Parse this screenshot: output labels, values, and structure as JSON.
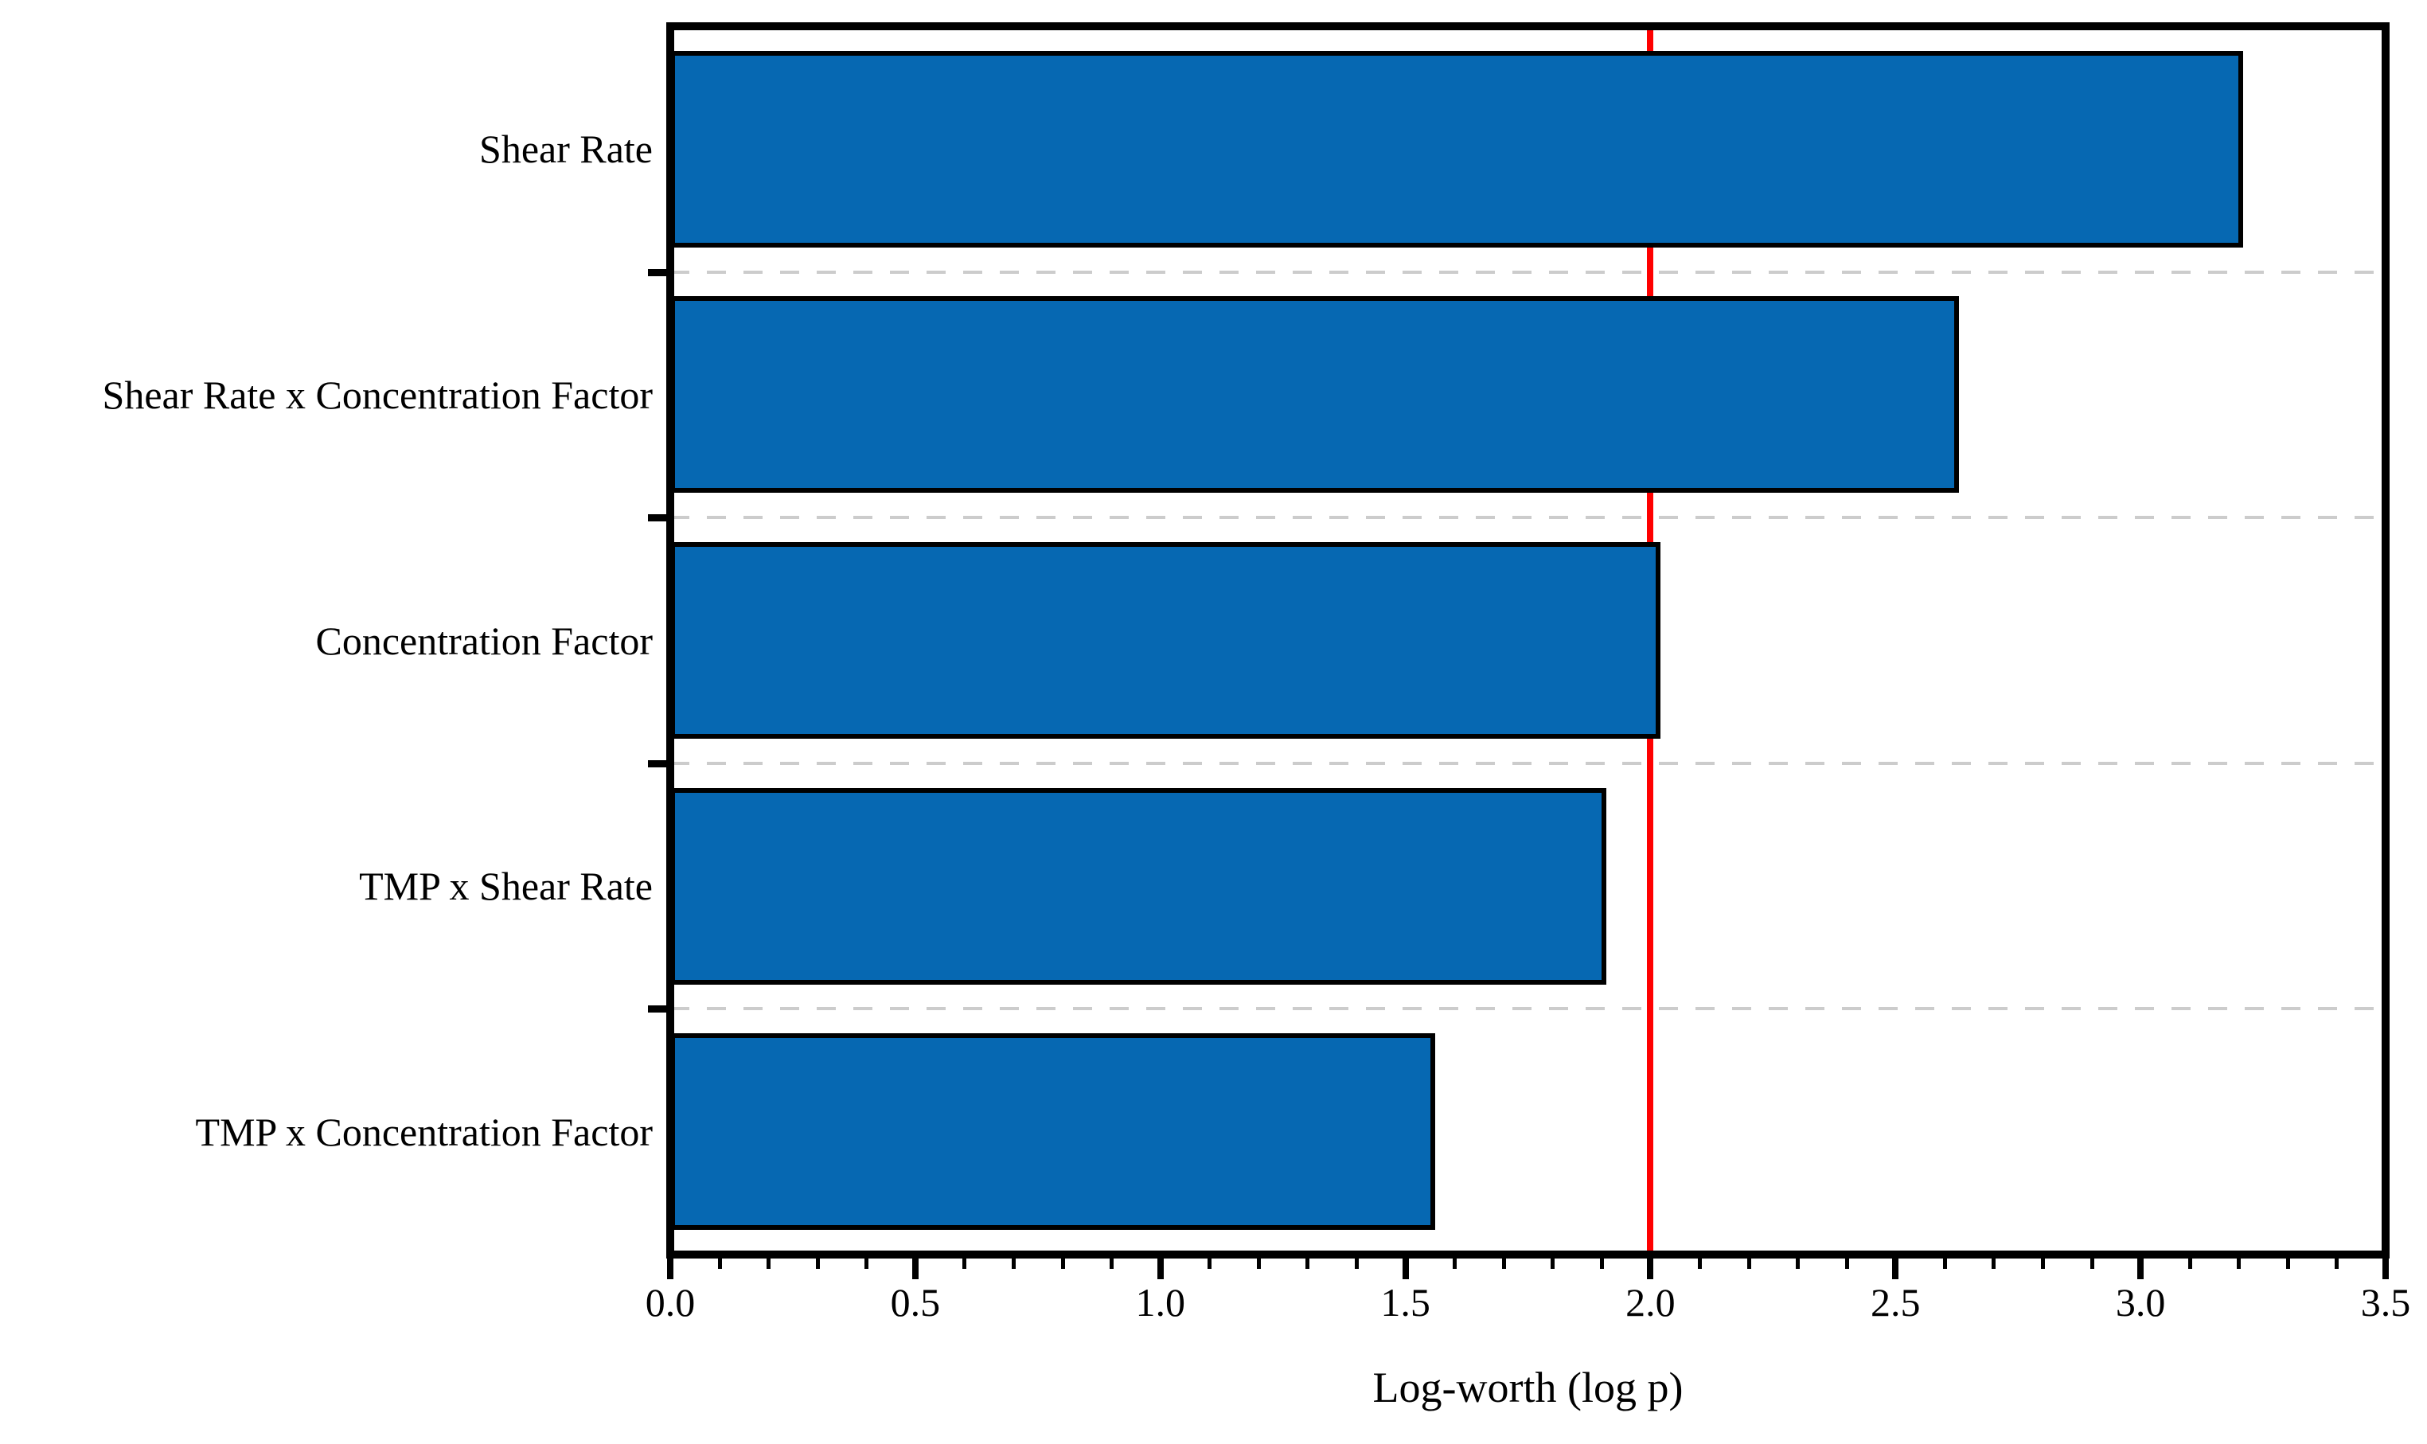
{
  "chart_data": {
    "type": "bar",
    "orientation": "horizontal",
    "title": "",
    "xlabel": "Log-worth (log p)",
    "ylabel": "",
    "categories": [
      "Shear Rate",
      "Shear Rate x Concentration Factor",
      "Concentration Factor",
      "TMP x Shear Rate",
      "TMP x Concentration Factor"
    ],
    "values": [
      3.21,
      2.63,
      2.02,
      1.91,
      1.56
    ],
    "xlim": [
      0,
      3.5
    ],
    "x_major_tick_step": 0.5,
    "x_minor_tick_step": 0.1,
    "x_tick_labels": [
      "0.0",
      "0.5",
      "1.0",
      "1.5",
      "2.0",
      "2.5",
      "3.0",
      "3.5"
    ],
    "reference_line": {
      "value": 2.0,
      "color": "#FF0000",
      "style": "solid"
    },
    "grid": "dashed horizontal separators between categories",
    "legend_position": "none",
    "colors": {
      "bar_fill": "#0668B2",
      "bar_border": "#000000",
      "frame": "#000000",
      "grid_line": "#CCCCCC",
      "background": "#FFFFFF",
      "text": "#000000"
    }
  }
}
